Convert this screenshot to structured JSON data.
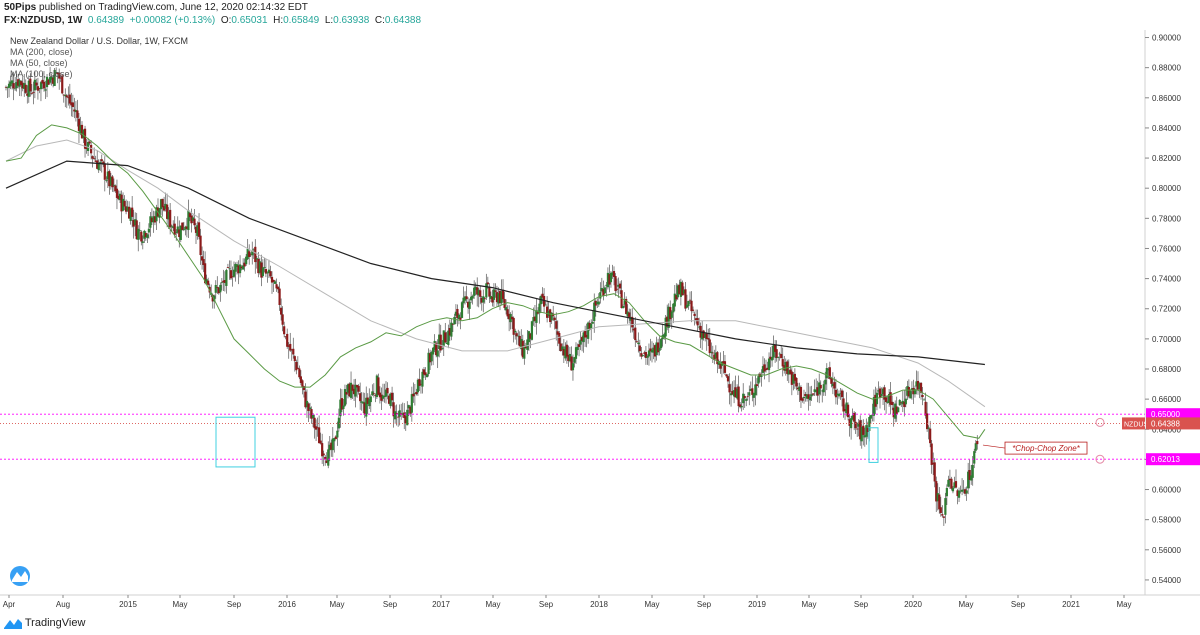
{
  "header": {
    "author": "50Pips",
    "published_text": "published on TradingView.com, June 12, 2020 02:14:32 EDT",
    "symbol": "FX:NZDUSD, 1W",
    "last": "0.64389",
    "change": "+0.00082 (+0.13%)",
    "o_label": "O:",
    "o": "0.65031",
    "h_label": "H:",
    "h": "0.65849",
    "l_label": "L:",
    "l": "0.63938",
    "c_label": "C:",
    "c": "0.64388"
  },
  "legend": {
    "title": "New Zealand Dollar / U.S. Dollar, 1W, FXCM",
    "ma200": "MA (200, close)",
    "ma50": "MA (50, close)",
    "ma100": "MA (100, close)"
  },
  "footer": {
    "brand": "TradingView"
  },
  "colors": {
    "up": "#2e7d32",
    "down": "#8b1a1a",
    "ma200": "#222222",
    "ma100": "#b8b8b8",
    "ma50": "#5a9a45",
    "level": "#ff00ff",
    "current": "#d9534f",
    "box": "#40d0e0",
    "zone_text": "#b71c1c"
  },
  "chart_data": {
    "type": "candlestick",
    "title": "New Zealand Dollar / U.S. Dollar, 1W, FXCM",
    "ylim": [
      0.53,
      0.905
    ],
    "y_ticks": [
      "0.90000",
      "0.88000",
      "0.86000",
      "0.84000",
      "0.82000",
      "0.80000",
      "0.78000",
      "0.76000",
      "0.74000",
      "0.72000",
      "0.70000",
      "0.68000",
      "0.66000",
      "0.64000",
      "0.62000",
      "0.60000",
      "0.58000",
      "0.56000",
      "0.54000"
    ],
    "x_ticks": [
      "Apr",
      "Aug",
      "2015",
      "May",
      "Sep",
      "2016",
      "May",
      "Sep",
      "2017",
      "May",
      "Sep",
      "2018",
      "May",
      "Sep",
      "2019",
      "May",
      "Sep",
      "2020",
      "May",
      "Sep",
      "2021",
      "May"
    ],
    "close_path": [
      [
        0,
        0.867
      ],
      [
        8,
        0.872
      ],
      [
        16,
        0.865
      ],
      [
        24,
        0.87
      ],
      [
        30,
        0.874
      ],
      [
        34,
        0.876
      ],
      [
        40,
        0.86
      ],
      [
        46,
        0.85
      ],
      [
        52,
        0.83
      ],
      [
        58,
        0.82
      ],
      [
        64,
        0.812
      ],
      [
        70,
        0.8
      ],
      [
        76,
        0.79
      ],
      [
        82,
        0.785
      ],
      [
        86,
        0.772
      ],
      [
        90,
        0.77
      ],
      [
        96,
        0.778
      ],
      [
        102,
        0.79
      ],
      [
        108,
        0.778
      ],
      [
        114,
        0.772
      ],
      [
        120,
        0.78
      ],
      [
        126,
        0.77
      ],
      [
        130,
        0.745
      ],
      [
        136,
        0.73
      ],
      [
        142,
        0.735
      ],
      [
        148,
        0.745
      ],
      [
        156,
        0.75
      ],
      [
        162,
        0.758
      ],
      [
        168,
        0.745
      ],
      [
        174,
        0.74
      ],
      [
        180,
        0.725
      ],
      [
        184,
        0.7
      ],
      [
        188,
        0.69
      ],
      [
        192,
        0.68
      ],
      [
        196,
        0.662
      ],
      [
        200,
        0.65
      ],
      [
        204,
        0.64
      ],
      [
        208,
        0.628
      ],
      [
        212,
        0.622
      ],
      [
        216,
        0.63
      ],
      [
        220,
        0.656
      ],
      [
        224,
        0.664
      ],
      [
        228,
        0.668
      ],
      [
        232,
        0.66
      ],
      [
        236,
        0.654
      ],
      [
        240,
        0.662
      ],
      [
        244,
        0.67
      ],
      [
        248,
        0.66
      ],
      [
        252,
        0.662
      ],
      [
        256,
        0.65
      ],
      [
        260,
        0.646
      ],
      [
        264,
        0.65
      ],
      [
        268,
        0.66
      ],
      [
        272,
        0.674
      ],
      [
        276,
        0.68
      ],
      [
        280,
        0.69
      ],
      [
        284,
        0.696
      ],
      [
        288,
        0.7
      ],
      [
        292,
        0.706
      ],
      [
        296,
        0.714
      ],
      [
        300,
        0.72
      ],
      [
        304,
        0.726
      ],
      [
        308,
        0.732
      ],
      [
        312,
        0.728
      ],
      [
        316,
        0.732
      ],
      [
        320,
        0.726
      ],
      [
        324,
        0.73
      ],
      [
        328,
        0.722
      ],
      [
        332,
        0.716
      ],
      [
        336,
        0.7
      ],
      [
        340,
        0.692
      ],
      [
        344,
        0.7
      ],
      [
        348,
        0.712
      ],
      [
        352,
        0.724
      ],
      [
        356,
        0.718
      ],
      [
        360,
        0.712
      ],
      [
        364,
        0.7
      ],
      [
        368,
        0.69
      ],
      [
        372,
        0.684
      ],
      [
        376,
        0.69
      ],
      [
        380,
        0.7
      ],
      [
        384,
        0.71
      ],
      [
        388,
        0.722
      ],
      [
        392,
        0.732
      ],
      [
        396,
        0.742
      ],
      [
        400,
        0.738
      ],
      [
        404,
        0.728
      ],
      [
        408,
        0.72
      ],
      [
        412,
        0.71
      ],
      [
        416,
        0.698
      ],
      [
        420,
        0.69
      ],
      [
        424,
        0.688
      ],
      [
        428,
        0.694
      ],
      [
        432,
        0.706
      ],
      [
        436,
        0.716
      ],
      [
        440,
        0.728
      ],
      [
        444,
        0.732
      ],
      [
        448,
        0.724
      ],
      [
        452,
        0.716
      ],
      [
        456,
        0.708
      ],
      [
        460,
        0.7
      ],
      [
        464,
        0.69
      ],
      [
        468,
        0.684
      ],
      [
        472,
        0.68
      ],
      [
        476,
        0.67
      ],
      [
        480,
        0.662
      ],
      [
        484,
        0.66
      ],
      [
        488,
        0.66
      ],
      [
        492,
        0.668
      ],
      [
        496,
        0.676
      ],
      [
        500,
        0.684
      ],
      [
        504,
        0.69
      ],
      [
        508,
        0.69
      ],
      [
        512,
        0.684
      ],
      [
        516,
        0.676
      ],
      [
        520,
        0.668
      ],
      [
        524,
        0.662
      ],
      [
        528,
        0.66
      ],
      [
        532,
        0.664
      ],
      [
        536,
        0.67
      ],
      [
        540,
        0.676
      ],
      [
        544,
        0.67
      ],
      [
        548,
        0.66
      ],
      [
        552,
        0.654
      ],
      [
        556,
        0.646
      ],
      [
        560,
        0.64
      ],
      [
        564,
        0.636
      ],
      [
        568,
        0.646
      ],
      [
        572,
        0.66
      ],
      [
        576,
        0.668
      ],
      [
        580,
        0.66
      ],
      [
        584,
        0.652
      ],
      [
        588,
        0.656
      ],
      [
        592,
        0.662
      ],
      [
        596,
        0.668
      ],
      [
        600,
        0.67
      ],
      [
        604,
        0.662
      ],
      [
        608,
        0.63
      ],
      [
        612,
        0.598
      ],
      [
        616,
        0.578
      ],
      [
        620,
        0.61
      ],
      [
        624,
        0.6
      ],
      [
        628,
        0.596
      ],
      [
        632,
        0.605
      ],
      [
        636,
        0.616
      ],
      [
        640,
        0.64
      ],
      [
        644,
        0.644
      ]
    ],
    "ma200": [
      [
        0,
        0.8
      ],
      [
        40,
        0.818
      ],
      [
        80,
        0.815
      ],
      [
        120,
        0.8
      ],
      [
        160,
        0.78
      ],
      [
        200,
        0.765
      ],
      [
        240,
        0.75
      ],
      [
        280,
        0.74
      ],
      [
        320,
        0.734
      ],
      [
        360,
        0.724
      ],
      [
        400,
        0.716
      ],
      [
        440,
        0.708
      ],
      [
        480,
        0.7
      ],
      [
        520,
        0.694
      ],
      [
        560,
        0.69
      ],
      [
        600,
        0.688
      ],
      [
        644,
        0.683
      ]
    ],
    "ma100": [
      [
        0,
        0.818
      ],
      [
        20,
        0.828
      ],
      [
        40,
        0.832
      ],
      [
        60,
        0.825
      ],
      [
        80,
        0.812
      ],
      [
        100,
        0.8
      ],
      [
        120,
        0.785
      ],
      [
        150,
        0.765
      ],
      [
        180,
        0.748
      ],
      [
        210,
        0.73
      ],
      [
        240,
        0.712
      ],
      [
        270,
        0.7
      ],
      [
        300,
        0.692
      ],
      [
        330,
        0.692
      ],
      [
        360,
        0.7
      ],
      [
        390,
        0.708
      ],
      [
        420,
        0.71
      ],
      [
        450,
        0.712
      ],
      [
        480,
        0.712
      ],
      [
        510,
        0.706
      ],
      [
        540,
        0.7
      ],
      [
        570,
        0.694
      ],
      [
        600,
        0.684
      ],
      [
        620,
        0.672
      ],
      [
        644,
        0.655
      ]
    ],
    "ma50": [
      [
        0,
        0.818
      ],
      [
        10,
        0.82
      ],
      [
        20,
        0.835
      ],
      [
        30,
        0.842
      ],
      [
        40,
        0.84
      ],
      [
        50,
        0.836
      ],
      [
        60,
        0.828
      ],
      [
        70,
        0.818
      ],
      [
        80,
        0.81
      ],
      [
        90,
        0.798
      ],
      [
        100,
        0.784
      ],
      [
        110,
        0.77
      ],
      [
        120,
        0.755
      ],
      [
        130,
        0.74
      ],
      [
        140,
        0.72
      ],
      [
        150,
        0.7
      ],
      [
        160,
        0.69
      ],
      [
        170,
        0.68
      ],
      [
        180,
        0.672
      ],
      [
        190,
        0.668
      ],
      [
        200,
        0.668
      ],
      [
        210,
        0.676
      ],
      [
        220,
        0.688
      ],
      [
        230,
        0.694
      ],
      [
        240,
        0.698
      ],
      [
        250,
        0.704
      ],
      [
        260,
        0.702
      ],
      [
        270,
        0.708
      ],
      [
        280,
        0.712
      ],
      [
        290,
        0.714
      ],
      [
        300,
        0.712
      ],
      [
        310,
        0.714
      ],
      [
        320,
        0.72
      ],
      [
        330,
        0.724
      ],
      [
        340,
        0.722
      ],
      [
        350,
        0.718
      ],
      [
        360,
        0.716
      ],
      [
        370,
        0.718
      ],
      [
        380,
        0.722
      ],
      [
        390,
        0.728
      ],
      [
        400,
        0.73
      ],
      [
        410,
        0.724
      ],
      [
        420,
        0.712
      ],
      [
        430,
        0.702
      ],
      [
        440,
        0.698
      ],
      [
        450,
        0.696
      ],
      [
        460,
        0.69
      ],
      [
        470,
        0.684
      ],
      [
        480,
        0.68
      ],
      [
        490,
        0.676
      ],
      [
        500,
        0.676
      ],
      [
        510,
        0.68
      ],
      [
        520,
        0.682
      ],
      [
        530,
        0.68
      ],
      [
        540,
        0.676
      ],
      [
        550,
        0.67
      ],
      [
        560,
        0.664
      ],
      [
        570,
        0.66
      ],
      [
        580,
        0.662
      ],
      [
        590,
        0.666
      ],
      [
        600,
        0.666
      ],
      [
        610,
        0.66
      ],
      [
        620,
        0.648
      ],
      [
        630,
        0.636
      ],
      [
        640,
        0.634
      ],
      [
        644,
        0.64
      ]
    ],
    "levels": [
      {
        "price": 0.65,
        "label": "0.65000"
      },
      {
        "price": 0.62013,
        "label": "0.62013"
      }
    ],
    "current": {
      "price": 0.64388,
      "symbol": "NZDUSD",
      "label": "0.64388"
    },
    "annotations": [
      {
        "text": "*Chop-Chop Zone*"
      }
    ]
  }
}
